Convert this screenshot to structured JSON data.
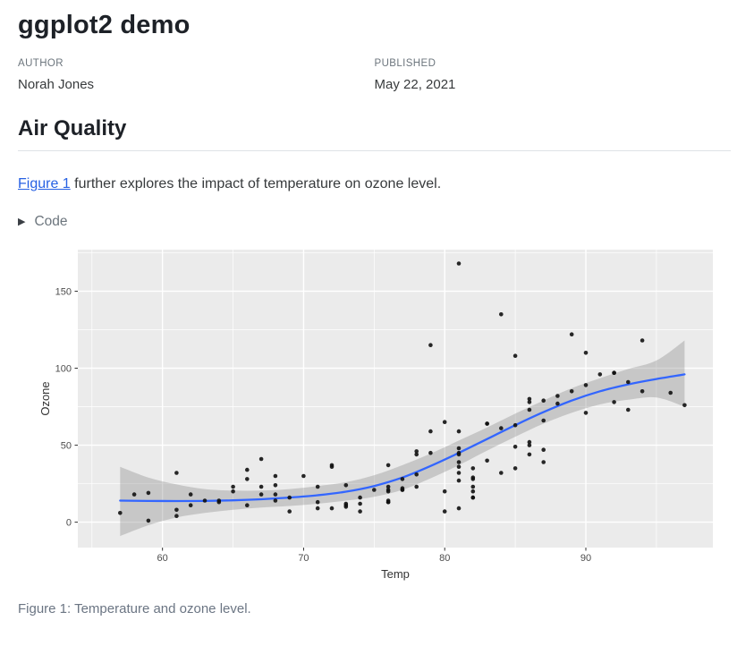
{
  "header": {
    "title": "ggplot2 demo",
    "author_label": "AUTHOR",
    "author": "Norah Jones",
    "published_label": "PUBLISHED",
    "published": "May 22, 2021"
  },
  "section": {
    "heading": "Air Quality",
    "link_text": "Figure 1",
    "paragraph_rest": " further explores the impact of temperature on ozone level."
  },
  "code_block": {
    "toggle_icon": "▶",
    "label": "Code"
  },
  "figure": {
    "caption": "Figure 1: Temperature and ozone level."
  },
  "chart_data": {
    "type": "scatter",
    "title": "",
    "xlabel": "Temp",
    "ylabel": "Ozone",
    "x_domain": [
      54,
      99
    ],
    "y_domain": [
      -16.5,
      177
    ],
    "x_ticks": [
      60,
      70,
      80,
      90
    ],
    "y_ticks": [
      0,
      50,
      100,
      150
    ],
    "x_minor_ticks": [
      55,
      65,
      75,
      85,
      95
    ],
    "y_minor_ticks": [
      25,
      75,
      125,
      175
    ],
    "panel_bg": "#EBEBEB",
    "grid_color": "#FFFFFF",
    "tick_label_color": "#4d4d4d",
    "axis_title_color": "#333333",
    "point_color": "#111111",
    "smooth_line_color": "#3366FF",
    "ribbon_color": "rgba(115,115,115,0.30)",
    "points": [
      [
        67,
        41
      ],
      [
        72,
        36
      ],
      [
        74,
        12
      ],
      [
        62,
        18
      ],
      [
        66,
        28
      ],
      [
        65,
        23
      ],
      [
        59,
        19
      ],
      [
        61,
        8
      ],
      [
        74,
        7
      ],
      [
        69,
        16
      ],
      [
        66,
        11
      ],
      [
        68,
        14
      ],
      [
        58,
        18
      ],
      [
        64,
        14
      ],
      [
        66,
        34
      ],
      [
        57,
        6
      ],
      [
        68,
        30
      ],
      [
        62,
        11
      ],
      [
        59,
        1
      ],
      [
        73,
        11
      ],
      [
        61,
        4
      ],
      [
        61,
        32
      ],
      [
        67,
        23
      ],
      [
        81,
        45
      ],
      [
        79,
        115
      ],
      [
        76,
        37
      ],
      [
        82,
        29
      ],
      [
        90,
        71
      ],
      [
        87,
        39
      ],
      [
        82,
        23
      ],
      [
        77,
        21
      ],
      [
        72,
        37
      ],
      [
        65,
        20
      ],
      [
        73,
        12
      ],
      [
        76,
        13
      ],
      [
        84,
        135
      ],
      [
        85,
        49
      ],
      [
        81,
        32
      ],
      [
        83,
        64
      ],
      [
        83,
        40
      ],
      [
        88,
        77
      ],
      [
        92,
        97
      ],
      [
        92,
        97
      ],
      [
        89,
        85
      ],
      [
        73,
        10
      ],
      [
        81,
        27
      ],
      [
        80,
        7
      ],
      [
        81,
        48
      ],
      [
        82,
        35
      ],
      [
        84,
        61
      ],
      [
        87,
        79
      ],
      [
        85,
        63
      ],
      [
        74,
        16
      ],
      [
        86,
        80
      ],
      [
        85,
        108
      ],
      [
        82,
        20
      ],
      [
        86,
        52
      ],
      [
        88,
        82
      ],
      [
        86,
        50
      ],
      [
        83,
        64
      ],
      [
        81,
        59
      ],
      [
        81,
        39
      ],
      [
        81,
        9
      ],
      [
        82,
        16
      ],
      [
        86,
        78
      ],
      [
        85,
        35
      ],
      [
        87,
        66
      ],
      [
        89,
        122
      ],
      [
        90,
        89
      ],
      [
        90,
        110
      ],
      [
        86,
        44
      ],
      [
        82,
        28
      ],
      [
        80,
        65
      ],
      [
        77,
        22
      ],
      [
        79,
        59
      ],
      [
        76,
        23
      ],
      [
        78,
        31
      ],
      [
        78,
        44
      ],
      [
        77,
        21
      ],
      [
        72,
        9
      ],
      [
        79,
        45
      ],
      [
        81,
        168
      ],
      [
        86,
        73
      ],
      [
        97,
        76
      ],
      [
        94,
        118
      ],
      [
        96,
        84
      ],
      [
        94,
        85
      ],
      [
        91,
        96
      ],
      [
        92,
        78
      ],
      [
        93,
        73
      ],
      [
        93,
        91
      ],
      [
        87,
        47
      ],
      [
        84,
        32
      ],
      [
        80,
        20
      ],
      [
        78,
        23
      ],
      [
        75,
        21
      ],
      [
        73,
        24
      ],
      [
        81,
        44
      ],
      [
        76,
        21
      ],
      [
        77,
        28
      ],
      [
        71,
        9
      ],
      [
        71,
        13
      ],
      [
        78,
        46
      ],
      [
        67,
        18
      ],
      [
        76,
        13
      ],
      [
        68,
        24
      ],
      [
        82,
        16
      ],
      [
        64,
        13
      ],
      [
        71,
        23
      ],
      [
        81,
        36
      ],
      [
        69,
        7
      ],
      [
        63,
        14
      ],
      [
        70,
        30
      ],
      [
        76,
        14
      ],
      [
        68,
        18
      ],
      [
        76,
        20
      ]
    ],
    "smooth": {
      "x": [
        57,
        59,
        61,
        63,
        65,
        67,
        69,
        71,
        73,
        75,
        77,
        79,
        81,
        83,
        85,
        87,
        89,
        91,
        93,
        95,
        97
      ],
      "fit": [
        14,
        13.8,
        13.7,
        13.8,
        14.2,
        14.9,
        16,
        17.5,
        19.8,
        23.5,
        29,
        36.5,
        45,
        54,
        63,
        71.5,
        79,
        85,
        89.5,
        93,
        96
      ],
      "lower": [
        -9,
        -2,
        3,
        6,
        8,
        9.5,
        10.5,
        12,
        14,
        16.5,
        21,
        28.5,
        37,
        46.5,
        55.5,
        64,
        71,
        76.5,
        79.5,
        81,
        75
      ],
      "upper": [
        36,
        29,
        24.5,
        21.5,
        20.5,
        20.5,
        21.5,
        23.5,
        26,
        30.5,
        37,
        44.5,
        53,
        61.5,
        70.5,
        79,
        87,
        93.5,
        99.5,
        105,
        118
      ]
    }
  }
}
